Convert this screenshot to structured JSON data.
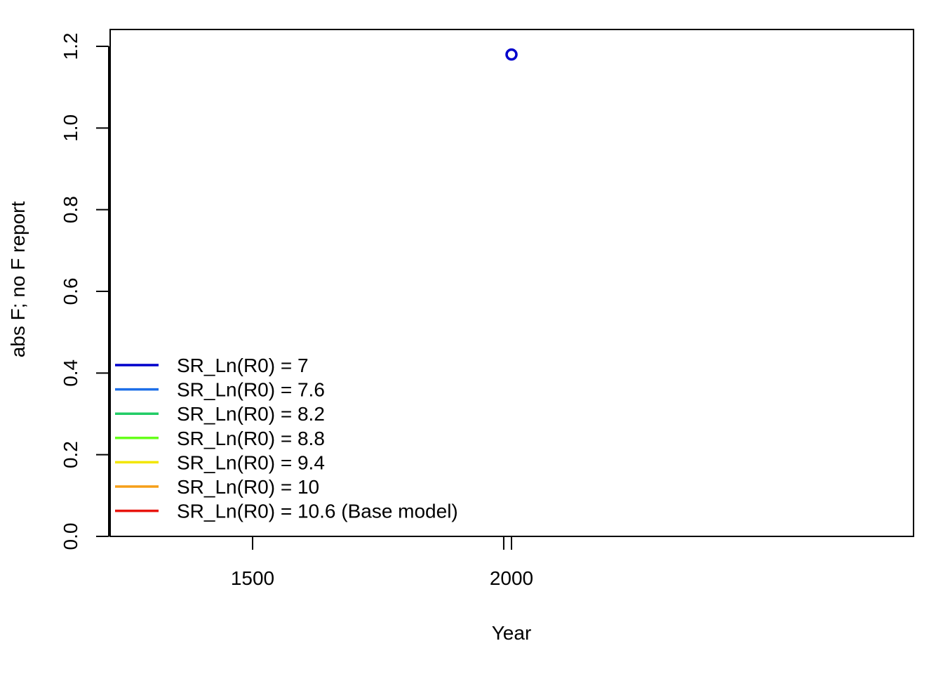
{
  "chart_data": {
    "type": "scatter",
    "title": "",
    "xlabel": "Year",
    "ylabel": "abs F; no F report",
    "xlim": [
      1220,
      2825
    ],
    "ylim": [
      -0.0,
      1.245
    ],
    "x_ticks": [
      1500,
      2000
    ],
    "x_tick_labels": [
      "1500",
      "2000"
    ],
    "x_extra_ticks": [
      1985
    ],
    "y_ticks": [
      0.0,
      0.2,
      0.4,
      0.6,
      0.8,
      1.0,
      1.2
    ],
    "y_tick_labels": [
      "0.0",
      "0.2",
      "0.4",
      "0.6",
      "0.8",
      "1.0",
      "1.2"
    ],
    "grid": false,
    "legend_position": "bottom-left",
    "points": [
      {
        "x": 2000,
        "y": 1.18,
        "color": "#0000CC"
      }
    ],
    "legend": [
      {
        "label": "SR_Ln(R0) =  7",
        "color": "#0000CC"
      },
      {
        "label": "SR_Ln(R0) =  7.6",
        "color": "#1E6FE8"
      },
      {
        "label": "SR_Ln(R0) =  8.2",
        "color": "#22CC66"
      },
      {
        "label": "SR_Ln(R0) =  8.8",
        "color": "#66FF1A"
      },
      {
        "label": "SR_Ln(R0) =  9.4",
        "color": "#F2E600"
      },
      {
        "label": "SR_Ln(R0) =  10",
        "color": "#F59F18"
      },
      {
        "label": "SR_Ln(R0) =  10.6 (Base model)",
        "color": "#E8140E"
      }
    ]
  }
}
